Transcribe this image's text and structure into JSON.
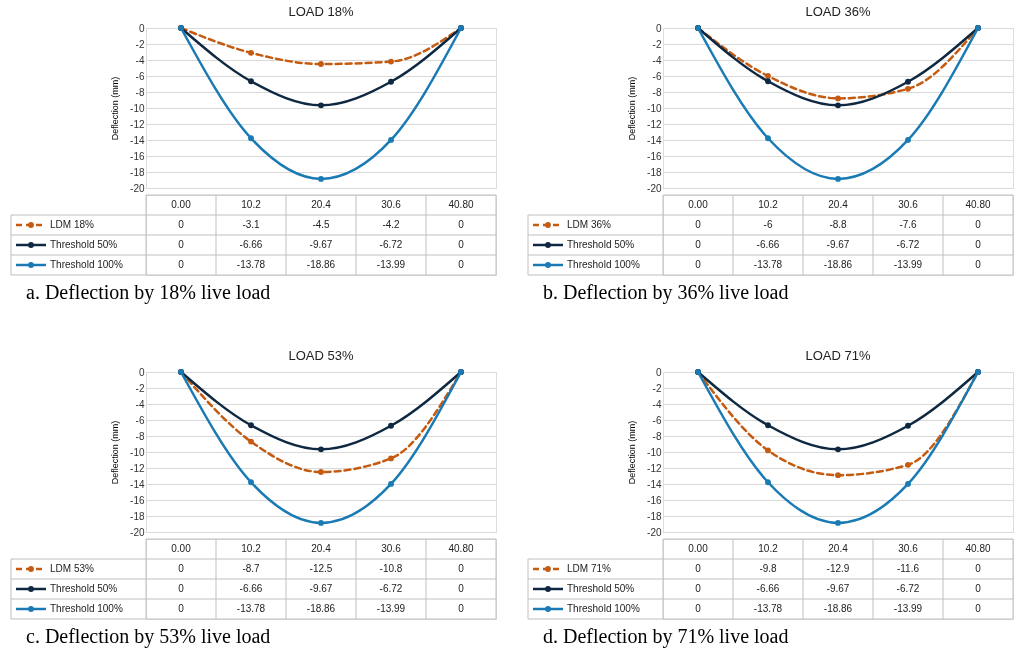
{
  "chart_data": [
    {
      "type": "line",
      "title": "LOAD 18%",
      "ylabel": "Deflection (mm)",
      "categories": [
        "0.00",
        "10.2",
        "20.4",
        "30.6",
        "40.80"
      ],
      "ylim": [
        -20,
        0
      ],
      "yticks": [
        0,
        -2,
        -4,
        -6,
        -8,
        -10,
        -12,
        -14,
        -16,
        -18,
        -20
      ],
      "grid": "y",
      "marker": "circle",
      "legend": "bottom",
      "data_labels": true,
      "annotations": [
        "a.    Deflection by 18% live load"
      ],
      "series": [
        {
          "name": "LDM 18%",
          "color": "#c55a11",
          "line_style": "dashed",
          "values": [
            0,
            -3.1,
            -4.5,
            -4.2,
            0
          ]
        },
        {
          "name": "Threshold 50%",
          "color": "#0e2841",
          "line_style": "solid",
          "values": [
            0,
            -6.66,
            -9.67,
            -6.72,
            0
          ]
        },
        {
          "name": "Threshold 100%",
          "color": "#1a7ab4",
          "line_style": "solid",
          "values": [
            0,
            -13.78,
            -18.86,
            -13.99,
            0
          ]
        }
      ]
    },
    {
      "type": "line",
      "title": "LOAD 36%",
      "ylabel": "Deflection (mm)",
      "categories": [
        "0.00",
        "10.2",
        "20.4",
        "30.6",
        "40.80"
      ],
      "ylim": [
        -20,
        0
      ],
      "yticks": [
        0,
        -2,
        -4,
        -6,
        -8,
        -10,
        -12,
        -14,
        -16,
        -18,
        -20
      ],
      "grid": "y",
      "marker": "circle",
      "legend": "bottom",
      "data_labels": true,
      "annotations": [
        "b.    Deflection by 36% live load"
      ],
      "series": [
        {
          "name": "LDM 36%",
          "color": "#c55a11",
          "line_style": "dashed",
          "values": [
            0,
            -6,
            -8.8,
            -7.6,
            0
          ]
        },
        {
          "name": "Threshold 50%",
          "color": "#0e2841",
          "line_style": "solid",
          "values": [
            0,
            -6.66,
            -9.67,
            -6.72,
            0
          ]
        },
        {
          "name": "Threshold 100%",
          "color": "#1a7ab4",
          "line_style": "solid",
          "values": [
            0,
            -13.78,
            -18.86,
            -13.99,
            0
          ]
        }
      ]
    },
    {
      "type": "line",
      "title": "LOAD 53%",
      "ylabel": "Deflection (mm)",
      "categories": [
        "0.00",
        "10.2",
        "20.4",
        "30.6",
        "40.80"
      ],
      "ylim": [
        -20,
        0
      ],
      "yticks": [
        0,
        -2,
        -4,
        -6,
        -8,
        -10,
        -12,
        -14,
        -16,
        -18,
        -20
      ],
      "grid": "y",
      "marker": "circle",
      "legend": "bottom",
      "data_labels": true,
      "annotations": [
        "c.    Deflection by 53% live load"
      ],
      "series": [
        {
          "name": "LDM 53%",
          "color": "#c55a11",
          "line_style": "dashed",
          "values": [
            0,
            -8.7,
            -12.5,
            -10.8,
            0
          ]
        },
        {
          "name": "Threshold 50%",
          "color": "#0e2841",
          "line_style": "solid",
          "values": [
            0,
            -6.66,
            -9.67,
            -6.72,
            0
          ]
        },
        {
          "name": "Threshold 100%",
          "color": "#1a7ab4",
          "line_style": "solid",
          "values": [
            0,
            -13.78,
            -18.86,
            -13.99,
            0
          ]
        }
      ]
    },
    {
      "type": "line",
      "title": "LOAD 71%",
      "ylabel": "Deflection (mm)",
      "categories": [
        "0.00",
        "10.2",
        "20.4",
        "30.6",
        "40.80"
      ],
      "ylim": [
        -20,
        0
      ],
      "yticks": [
        0,
        -2,
        -4,
        -6,
        -8,
        -10,
        -12,
        -14,
        -16,
        -18,
        -20
      ],
      "grid": "y",
      "marker": "circle",
      "legend": "bottom",
      "data_labels": true,
      "annotations": [
        "d.    Deflection by 71% live load"
      ],
      "series": [
        {
          "name": "LDM 71%",
          "color": "#c55a11",
          "line_style": "dashed",
          "values": [
            0,
            -9.8,
            -12.9,
            -11.6,
            0
          ]
        },
        {
          "name": "Threshold 50%",
          "color": "#0e2841",
          "line_style": "solid",
          "values": [
            0,
            -6.66,
            -9.67,
            -6.72,
            0
          ]
        },
        {
          "name": "Threshold 100%",
          "color": "#1a7ab4",
          "line_style": "solid",
          "values": [
            0,
            -13.78,
            -18.86,
            -13.99,
            0
          ]
        }
      ]
    }
  ]
}
